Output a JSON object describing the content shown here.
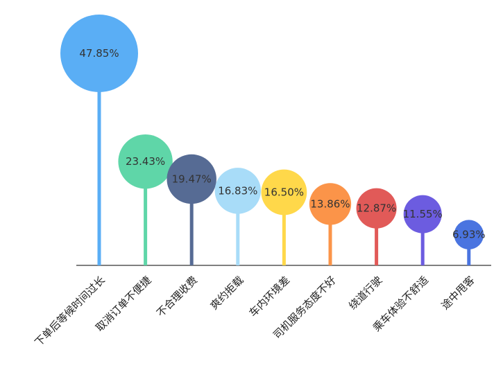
{
  "chart_data": {
    "type": "lollipop",
    "title": "",
    "xlabel": "",
    "ylabel": "",
    "ylim": [
      0,
      50
    ],
    "grid": false,
    "legend": "none",
    "categories": [
      "下单后等候时间过长",
      "取消订单不便捷",
      "不合理收费",
      "爽约拒载",
      "车内环境差",
      "司机服务态度不好",
      "绕道行驶",
      "乘车体验不舒适",
      "途中甩客"
    ],
    "values": [
      47.85,
      23.43,
      19.47,
      16.83,
      16.5,
      13.86,
      12.87,
      11.55,
      6.93
    ],
    "value_labels": [
      "47.85%",
      "23.43%",
      "19.47%",
      "16.83%",
      "16.50%",
      "13.86%",
      "12.87%",
      "11.55%",
      "6.93%"
    ],
    "colors": [
      "#5aaef5",
      "#5fd6a8",
      "#566b94",
      "#a8dcf8",
      "#ffd84a",
      "#fb9449",
      "#e15a58",
      "#6c5ce0",
      "#4a74e0"
    ]
  }
}
